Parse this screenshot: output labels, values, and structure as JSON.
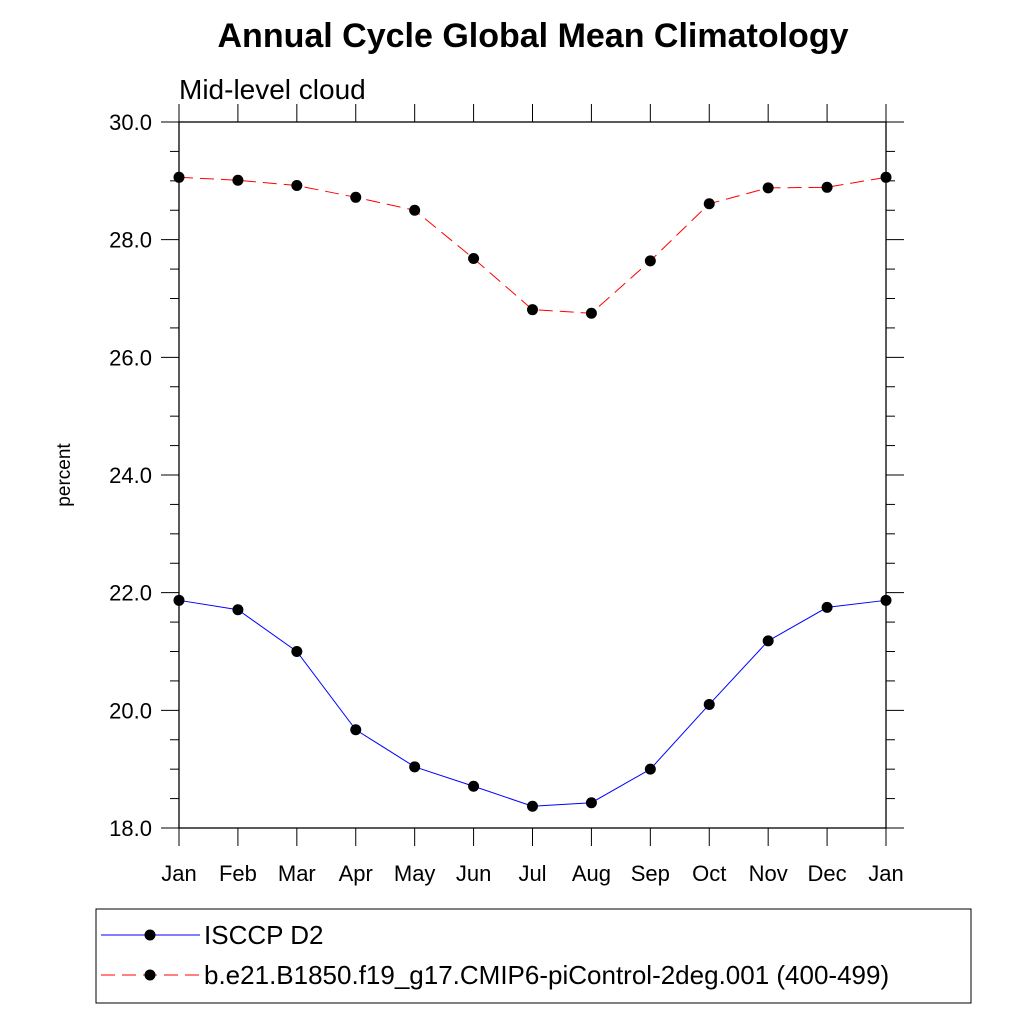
{
  "chart_data": {
    "type": "line",
    "title": "Annual Cycle Global Mean Climatology",
    "subtitle": "Mid-level cloud",
    "xlabel": "",
    "ylabel": "percent",
    "categories": [
      "Jan",
      "Feb",
      "Mar",
      "Apr",
      "May",
      "Jun",
      "Jul",
      "Aug",
      "Sep",
      "Oct",
      "Nov",
      "Dec",
      "Jan"
    ],
    "ylim": [
      18.0,
      30.0
    ],
    "yticks": [
      "18.0",
      "20.0",
      "22.0",
      "24.0",
      "26.0",
      "28.0",
      "30.0"
    ],
    "grid": false,
    "legend_position": "bottom",
    "series": [
      {
        "name": "ISCCP D2",
        "color": "#0000ff",
        "dash": "solid",
        "values": [
          21.87,
          21.71,
          21.0,
          19.67,
          19.04,
          18.71,
          18.37,
          18.43,
          19.0,
          20.1,
          21.18,
          21.75,
          21.87
        ]
      },
      {
        "name": "b.e21.B1850.f19_g17.CMIP6-piControl-2deg.001 (400-499)",
        "color": "#ff0000",
        "dash": "dashed",
        "values": [
          29.06,
          29.01,
          28.92,
          28.72,
          28.5,
          27.68,
          26.81,
          26.75,
          27.64,
          28.61,
          28.88,
          28.89,
          29.06
        ]
      }
    ]
  }
}
